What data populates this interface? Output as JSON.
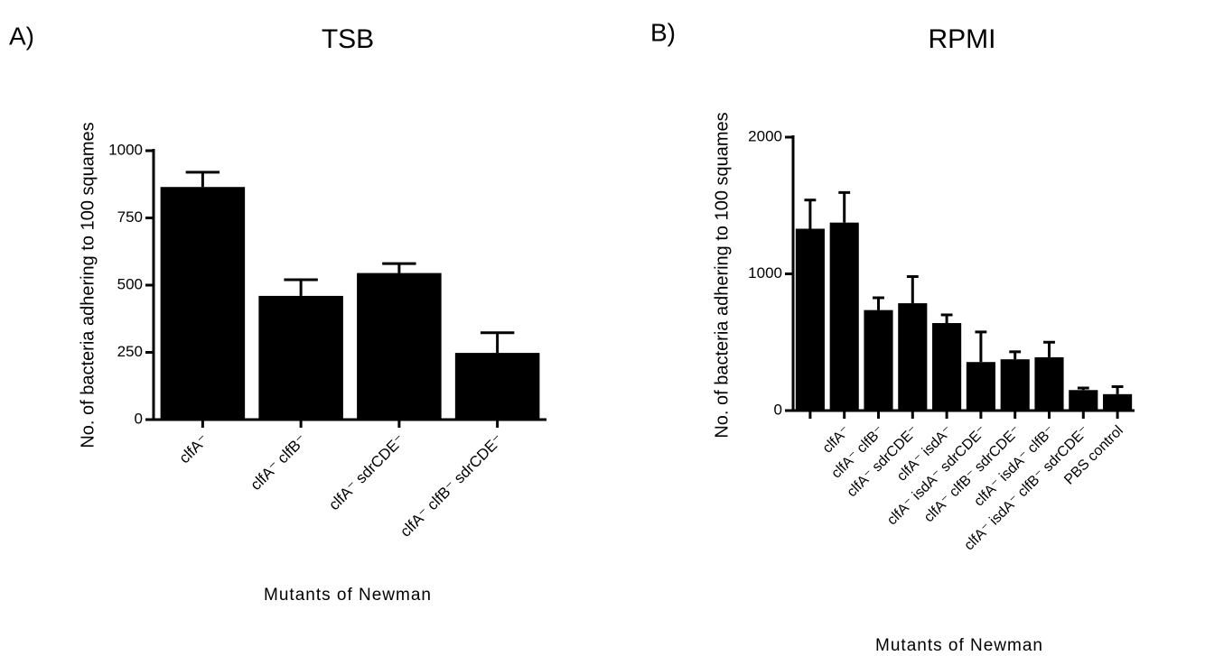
{
  "chart_data": [
    {
      "type": "bar",
      "panel_label": "A)",
      "title": "TSB",
      "y_label": "No. of bacteria adhering to 100 squames",
      "x_label": "Mutants of Newman",
      "categories": [
        "clfA⁻",
        "clfA⁻ clfB⁻",
        "clfA⁻ sdrCDE⁻",
        "clfA⁻ clfB⁻ sdrCDE⁻"
      ],
      "values": [
        865,
        460,
        545,
        248
      ],
      "errors": [
        55,
        60,
        35,
        75
      ],
      "color": "#000000",
      "ylim": [
        0,
        1000
      ],
      "yticks": [
        0,
        250,
        500,
        750,
        1000
      ],
      "grid": false
    },
    {
      "type": "bar",
      "panel_label": "B)",
      "title": "RPMI",
      "y_label": "No. of bacteria adhering to 100 squames",
      "x_label": "Mutants of Newman",
      "categories": [
        null,
        "clfA⁻",
        "clfA⁻ clfB⁻",
        "clfA⁻ sdrCDE⁻",
        "clfA⁻ isdA⁻",
        "clfA⁻ isdA⁻ sdrCDE⁻",
        "clfA⁻ clfB⁻ sdrCDE⁻",
        "clfA⁻ isdA⁻ clfB⁻",
        "clfA⁻ isdA⁻ clfB⁻ sdrCDE⁻",
        "PBS control"
      ],
      "values": [
        1330,
        1375,
        735,
        785,
        640,
        355,
        375,
        390,
        150,
        120
      ],
      "errors": [
        210,
        220,
        90,
        195,
        60,
        220,
        55,
        110,
        15,
        55
      ],
      "color": "#000000",
      "ylim": [
        0,
        2000
      ],
      "yticks": [
        0,
        1000,
        2000
      ],
      "grid": false
    }
  ]
}
